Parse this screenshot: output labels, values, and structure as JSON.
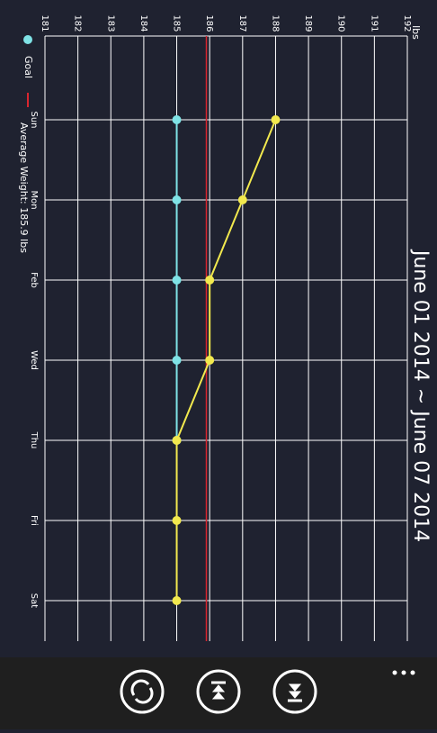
{
  "chart_data": {
    "type": "line",
    "title": "June 01 2014 ~ June 07 2014",
    "y_label": "lbs",
    "categories": [
      "Sun",
      "Mon",
      "Feb",
      "Wed",
      "Thu",
      "Fri",
      "Sat"
    ],
    "series": [
      {
        "name": "Goal",
        "color": "#7fe3e6",
        "values": [
          185,
          185,
          185,
          185,
          185,
          null,
          null
        ]
      },
      {
        "color": "#f2e94e",
        "values": [
          188,
          187,
          186,
          186,
          185,
          185,
          185
        ]
      }
    ],
    "average": 185.9,
    "average_label": "Average Weight: 185.9 lbs",
    "average_color": "#d9262f",
    "ylim": [
      181,
      192
    ],
    "yticks": [
      181,
      182,
      183,
      184,
      185,
      186,
      187,
      188,
      189,
      190,
      191,
      192
    ],
    "grid": true
  }
}
